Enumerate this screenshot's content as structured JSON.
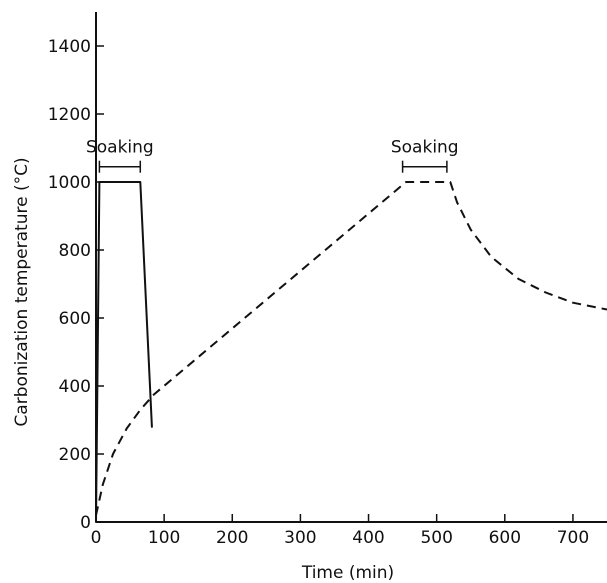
{
  "chart_data": {
    "type": "line",
    "xlabel": "Time (min)",
    "ylabel": "Carbonization temperature (°C)",
    "xlim": [
      0,
      750
    ],
    "ylim": [
      0,
      1500
    ],
    "x_ticks": [
      0,
      100,
      200,
      300,
      400,
      500,
      600,
      700
    ],
    "y_ticks": [
      0,
      200,
      400,
      600,
      800,
      1000,
      1200,
      1400
    ],
    "grid": false,
    "series": [
      {
        "style": "solid",
        "color": "#111111",
        "points": [
          [
            0,
            0
          ],
          [
            5,
            1000
          ],
          [
            65,
            1000
          ],
          [
            82,
            280
          ]
        ]
      },
      {
        "style": "dashed",
        "color": "#111111",
        "points": [
          [
            0,
            20
          ],
          [
            10,
            110
          ],
          [
            25,
            200
          ],
          [
            45,
            275
          ],
          [
            65,
            330
          ],
          [
            85,
            375
          ],
          [
            455,
            1000
          ],
          [
            520,
            1000
          ],
          [
            530,
            940
          ],
          [
            550,
            860
          ],
          [
            580,
            780
          ],
          [
            620,
            715
          ],
          [
            660,
            675
          ],
          [
            700,
            645
          ],
          [
            750,
            625
          ]
        ]
      }
    ],
    "annotations": [
      {
        "text": "Soaking",
        "x_start": 5,
        "x_end": 65,
        "y": 1045
      },
      {
        "text": "Soaking",
        "x_start": 450,
        "x_end": 515,
        "y": 1045
      }
    ]
  }
}
